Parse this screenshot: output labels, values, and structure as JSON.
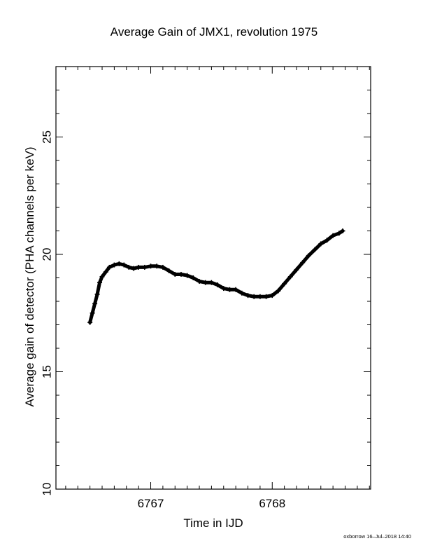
{
  "chart_data": {
    "type": "scatter",
    "title": "Average Gain of JMX1, revolution 1975",
    "xlabel": "Time in IJD",
    "ylabel": "Average gain of detector (PHA channels per keV)",
    "xlim": [
      6766.22,
      6768.81
    ],
    "ylim": [
      10,
      28
    ],
    "x_ticks": [
      6767,
      6768
    ],
    "y_ticks": [
      10,
      15,
      20,
      25
    ],
    "marker": "plus",
    "marker_color": "#000000",
    "series": [
      {
        "x": [
          6766.5,
          6766.52,
          6766.54,
          6766.56,
          6766.58,
          6766.6,
          6766.63,
          6766.66,
          6766.7,
          6766.74,
          6766.78,
          6766.82,
          6766.86,
          6766.9,
          6766.95,
          6767.0,
          6767.05,
          6767.1,
          6767.15,
          6767.2,
          6767.25,
          6767.3,
          6767.35,
          6767.4,
          6767.45,
          6767.5,
          6767.55,
          6767.6,
          6767.65,
          6767.7,
          6767.75,
          6767.8,
          6767.85,
          6767.9,
          6767.95,
          6768.0,
          6768.05,
          6768.1,
          6768.15,
          6768.2,
          6768.25,
          6768.3,
          6768.35,
          6768.4,
          6768.45,
          6768.5,
          6768.55,
          6768.58
        ],
        "y": [
          17.1,
          17.5,
          17.9,
          18.3,
          18.8,
          19.05,
          19.25,
          19.45,
          19.55,
          19.6,
          19.55,
          19.45,
          19.4,
          19.45,
          19.45,
          19.5,
          19.5,
          19.45,
          19.3,
          19.15,
          19.15,
          19.1,
          19.0,
          18.85,
          18.8,
          18.8,
          18.7,
          18.55,
          18.5,
          18.5,
          18.35,
          18.25,
          18.2,
          18.2,
          18.2,
          18.25,
          18.45,
          18.75,
          19.05,
          19.35,
          19.65,
          19.95,
          20.2,
          20.45,
          20.6,
          20.8,
          20.9,
          21.0
        ]
      }
    ]
  },
  "footer": "oxborrow 16–Jul–2018 14:40"
}
